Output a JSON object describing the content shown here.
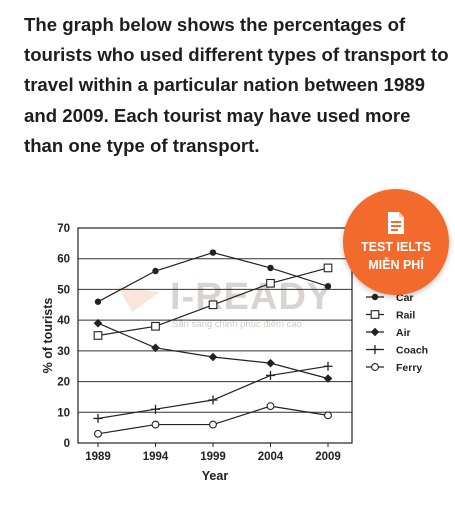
{
  "question": "The graph below shows the percentages of tourists who used different types of transport to travel within a particular nation between 1989 and 2009. Each tourist may have used more than one type of transport.",
  "badge": {
    "icon": "document-icon",
    "line1": "TEST IELTS",
    "line2": "MIỄN PHÍ",
    "color": "#f26a2c"
  },
  "watermark": {
    "brand": "I-READY",
    "slogan": "Sẵn sàng chinh phục điểm cao"
  },
  "chart_data": {
    "type": "line",
    "x": [
      "1989",
      "1994",
      "1999",
      "2004",
      "2009"
    ],
    "xlabel": "Year",
    "ylabel": "% of tourists",
    "ylim": [
      0,
      70
    ],
    "yticks": [
      0,
      10,
      20,
      30,
      40,
      50,
      60,
      70
    ],
    "grid": true,
    "legend_position": "right",
    "series": [
      {
        "name": "Car",
        "marker": "dot",
        "values": [
          46,
          56,
          62,
          57,
          51
        ]
      },
      {
        "name": "Rail",
        "marker": "open-square",
        "values": [
          35,
          38,
          45,
          52,
          57
        ]
      },
      {
        "name": "Air",
        "marker": "diamond",
        "values": [
          39,
          31,
          28,
          26,
          21
        ]
      },
      {
        "name": "Coach",
        "marker": "plus",
        "values": [
          8,
          11,
          14,
          22,
          25
        ]
      },
      {
        "name": "Ferry",
        "marker": "open-circle",
        "values": [
          3,
          6,
          6,
          12,
          9
        ]
      }
    ]
  }
}
